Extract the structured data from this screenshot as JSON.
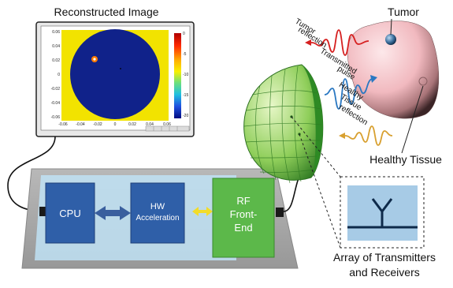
{
  "labels": {
    "reconstructed_image": "Reconstructed Image",
    "tumor": "Tumor",
    "healthy_tissue": "Healthy Tissue",
    "tumor_reflection_1": "Tumor",
    "tumor_reflection_2": "reflection",
    "transmitted_pulse_1": "Transmitted",
    "transmitted_pulse_2": "pulse",
    "healthy_reflection_1": "Healthy",
    "healthy_reflection_2": "Tissue",
    "healthy_reflection_3": "reflection",
    "array_1": "Array of Transmitters",
    "array_2": "and Receivers",
    "cpu": "CPU",
    "hw_1": "HW",
    "hw_2": "Acceleration",
    "rf_1": "RF",
    "rf_2": "Front-",
    "rf_3": "End"
  },
  "plot": {
    "y_ticks": [
      "0.06",
      "0.04",
      "0.02",
      "0",
      "-0.02",
      "-0.04",
      "-0.06"
    ],
    "x_ticks": [
      "-0.06",
      "-0.04",
      "-0.02",
      "0",
      "0.02",
      "0.04",
      "0.06"
    ],
    "colorbar_ticks": [
      "0",
      "-5",
      "-10",
      "-15",
      "-20"
    ]
  },
  "colors": {
    "cpu": "#2f5fa8",
    "rf": "#5cb84a",
    "board": "#a8a8a8",
    "tumor_wave": "#d62020",
    "pulse_wave": "#2a78c2",
    "healthy_wave": "#d8a030",
    "plot_bg": "#f2e300",
    "plot_disk": "#10228a"
  }
}
